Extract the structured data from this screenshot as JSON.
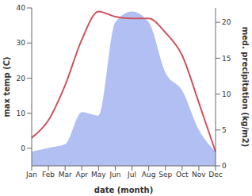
{
  "chart_data": {
    "type": "line",
    "xlabel": "date (month)",
    "ylabel": "max temp (C)",
    "y2label": "med. precipitation (kg/m2)",
    "categories": [
      "Jan",
      "Feb",
      "Mar",
      "Apr",
      "May",
      "Jun",
      "Jul",
      "Aug",
      "Sep",
      "Oct",
      "Nov",
      "Dec"
    ],
    "series": [
      {
        "name": "max temp",
        "type": "line",
        "color": "#cd5360",
        "values": [
          3,
          8,
          18,
          31,
          39,
          37.5,
          37,
          37,
          33,
          26.5,
          13,
          -1
        ]
      },
      {
        "name": "med. precipitation",
        "type": "area",
        "axis": "y2",
        "color": "#b1bff2",
        "values": [
          2,
          2.5,
          3,
          7.5,
          7,
          20,
          21.5,
          20,
          13,
          10.5,
          5,
          2
        ]
      }
    ],
    "ylim": [
      -5,
      40
    ],
    "yticks": [
      0,
      10,
      20,
      30,
      40
    ],
    "y2lim": [
      0,
      22
    ],
    "y2ticks": [
      0,
      5,
      10,
      15,
      20
    ],
    "grid": false
  }
}
